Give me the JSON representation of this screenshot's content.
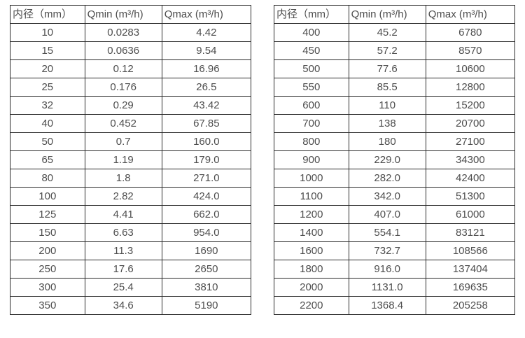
{
  "colors": {
    "border": "#2b2b2b",
    "text": "#4d4d4d",
    "background": "#ffffff"
  },
  "tables": [
    {
      "name": "small-diameter-flow-rates",
      "headers": [
        "内径（mm）",
        "Qmin (m³/h)",
        "Qmax (m³/h)"
      ],
      "rows": [
        [
          "10",
          "0.0283",
          "4.42"
        ],
        [
          "15",
          "0.0636",
          "9.54"
        ],
        [
          "20",
          "0.12",
          "16.96"
        ],
        [
          "25",
          "0.176",
          "26.5"
        ],
        [
          "32",
          "0.29",
          "43.42"
        ],
        [
          "40",
          "0.452",
          "67.85"
        ],
        [
          "50",
          "0.7",
          "160.0"
        ],
        [
          "65",
          "1.19",
          "179.0"
        ],
        [
          "80",
          "1.8",
          "271.0"
        ],
        [
          "100",
          "2.82",
          "424.0"
        ],
        [
          "125",
          "4.41",
          "662.0"
        ],
        [
          "150",
          "6.63",
          "954.0"
        ],
        [
          "200",
          "11.3",
          "1690"
        ],
        [
          "250",
          "17.6",
          "2650"
        ],
        [
          "300",
          "25.4",
          "3810"
        ],
        [
          "350",
          "34.6",
          "5190"
        ]
      ]
    },
    {
      "name": "large-diameter-flow-rates",
      "headers": [
        "内径（mm）",
        "Qmin (m³/h)",
        "Qmax (m³/h)"
      ],
      "rows": [
        [
          "400",
          "45.2",
          "6780"
        ],
        [
          "450",
          "57.2",
          "8570"
        ],
        [
          "500",
          "77.6",
          "10600"
        ],
        [
          "550",
          "85.5",
          "12800"
        ],
        [
          "600",
          "110",
          "15200"
        ],
        [
          "700",
          "138",
          "20700"
        ],
        [
          "800",
          "180",
          "27100"
        ],
        [
          "900",
          "229.0",
          "34300"
        ],
        [
          "1000",
          "282.0",
          "42400"
        ],
        [
          "1100",
          "342.0",
          "51300"
        ],
        [
          "1200",
          "407.0",
          "61000"
        ],
        [
          "1400",
          "554.1",
          "83121"
        ],
        [
          "1600",
          "732.7",
          "108566"
        ],
        [
          "1800",
          "916.0",
          "137404"
        ],
        [
          "2000",
          "1131.0",
          "169635"
        ],
        [
          "2200",
          "1368.4",
          "205258"
        ]
      ]
    }
  ]
}
